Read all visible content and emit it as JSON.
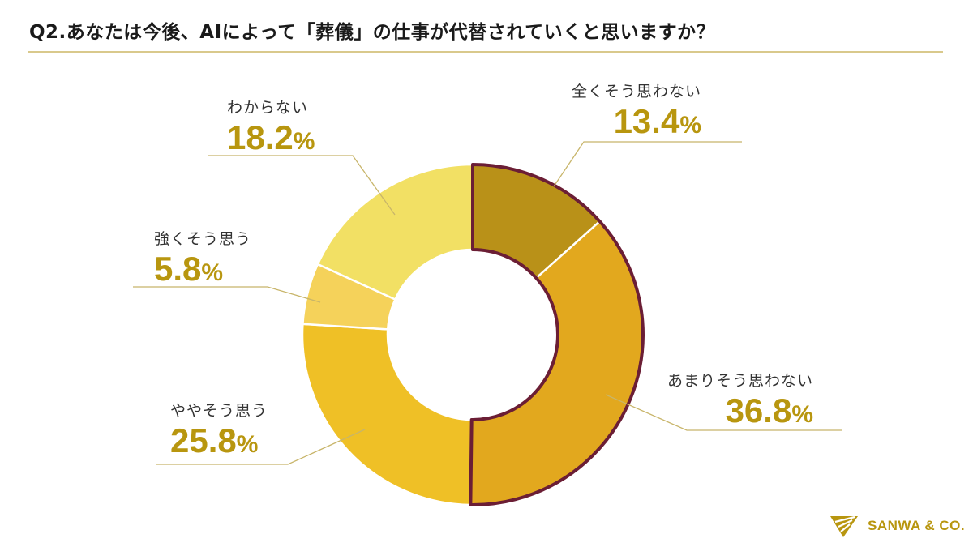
{
  "header": {
    "title": "Q2.あなたは今後、AIによって「葬儀」の仕事が代替されていくと思いますか？"
  },
  "labels": {
    "zen": {
      "category": "全くそう思わない",
      "value": "13.4",
      "unit": "%"
    },
    "amari": {
      "category": "あまりそう思わない",
      "value": "36.8",
      "unit": "%"
    },
    "yaya": {
      "category": "ややそう思う",
      "value": "25.8",
      "unit": "%"
    },
    "tsuyoku": {
      "category": "強くそう思う",
      "value": "5.8",
      "unit": "%"
    },
    "wakaranai": {
      "category": "わからない",
      "value": "18.2",
      "unit": "%"
    }
  },
  "logo": {
    "text": "SANWA & CO."
  },
  "colors": {
    "zen": "#B99118",
    "amari": "#E2A81E",
    "yaya": "#EFC026",
    "tsuyoku": "#F5D25A",
    "wakaranai": "#F2E064",
    "highlight_outline": "#6B1E35",
    "value_text": "#B8960F",
    "leader_line": "#C8B56A",
    "title_rule": "#D9C98C"
  },
  "chart_data": {
    "type": "pie",
    "subtype": "donut",
    "title": "Q2.あなたは今後、AIによって「葬儀」の仕事が代替されていくと思いますか？",
    "categories": [
      "全くそう思わない",
      "あまりそう思わない",
      "ややそう思う",
      "強くそう思う",
      "わからない"
    ],
    "values": [
      13.4,
      36.8,
      25.8,
      5.8,
      18.2
    ],
    "unit": "%",
    "start_angle": "12 o'clock, clockwise",
    "highlighted": [
      "全くそう思わない",
      "あまりそう思わない"
    ],
    "legend": "none (callout labels)"
  }
}
